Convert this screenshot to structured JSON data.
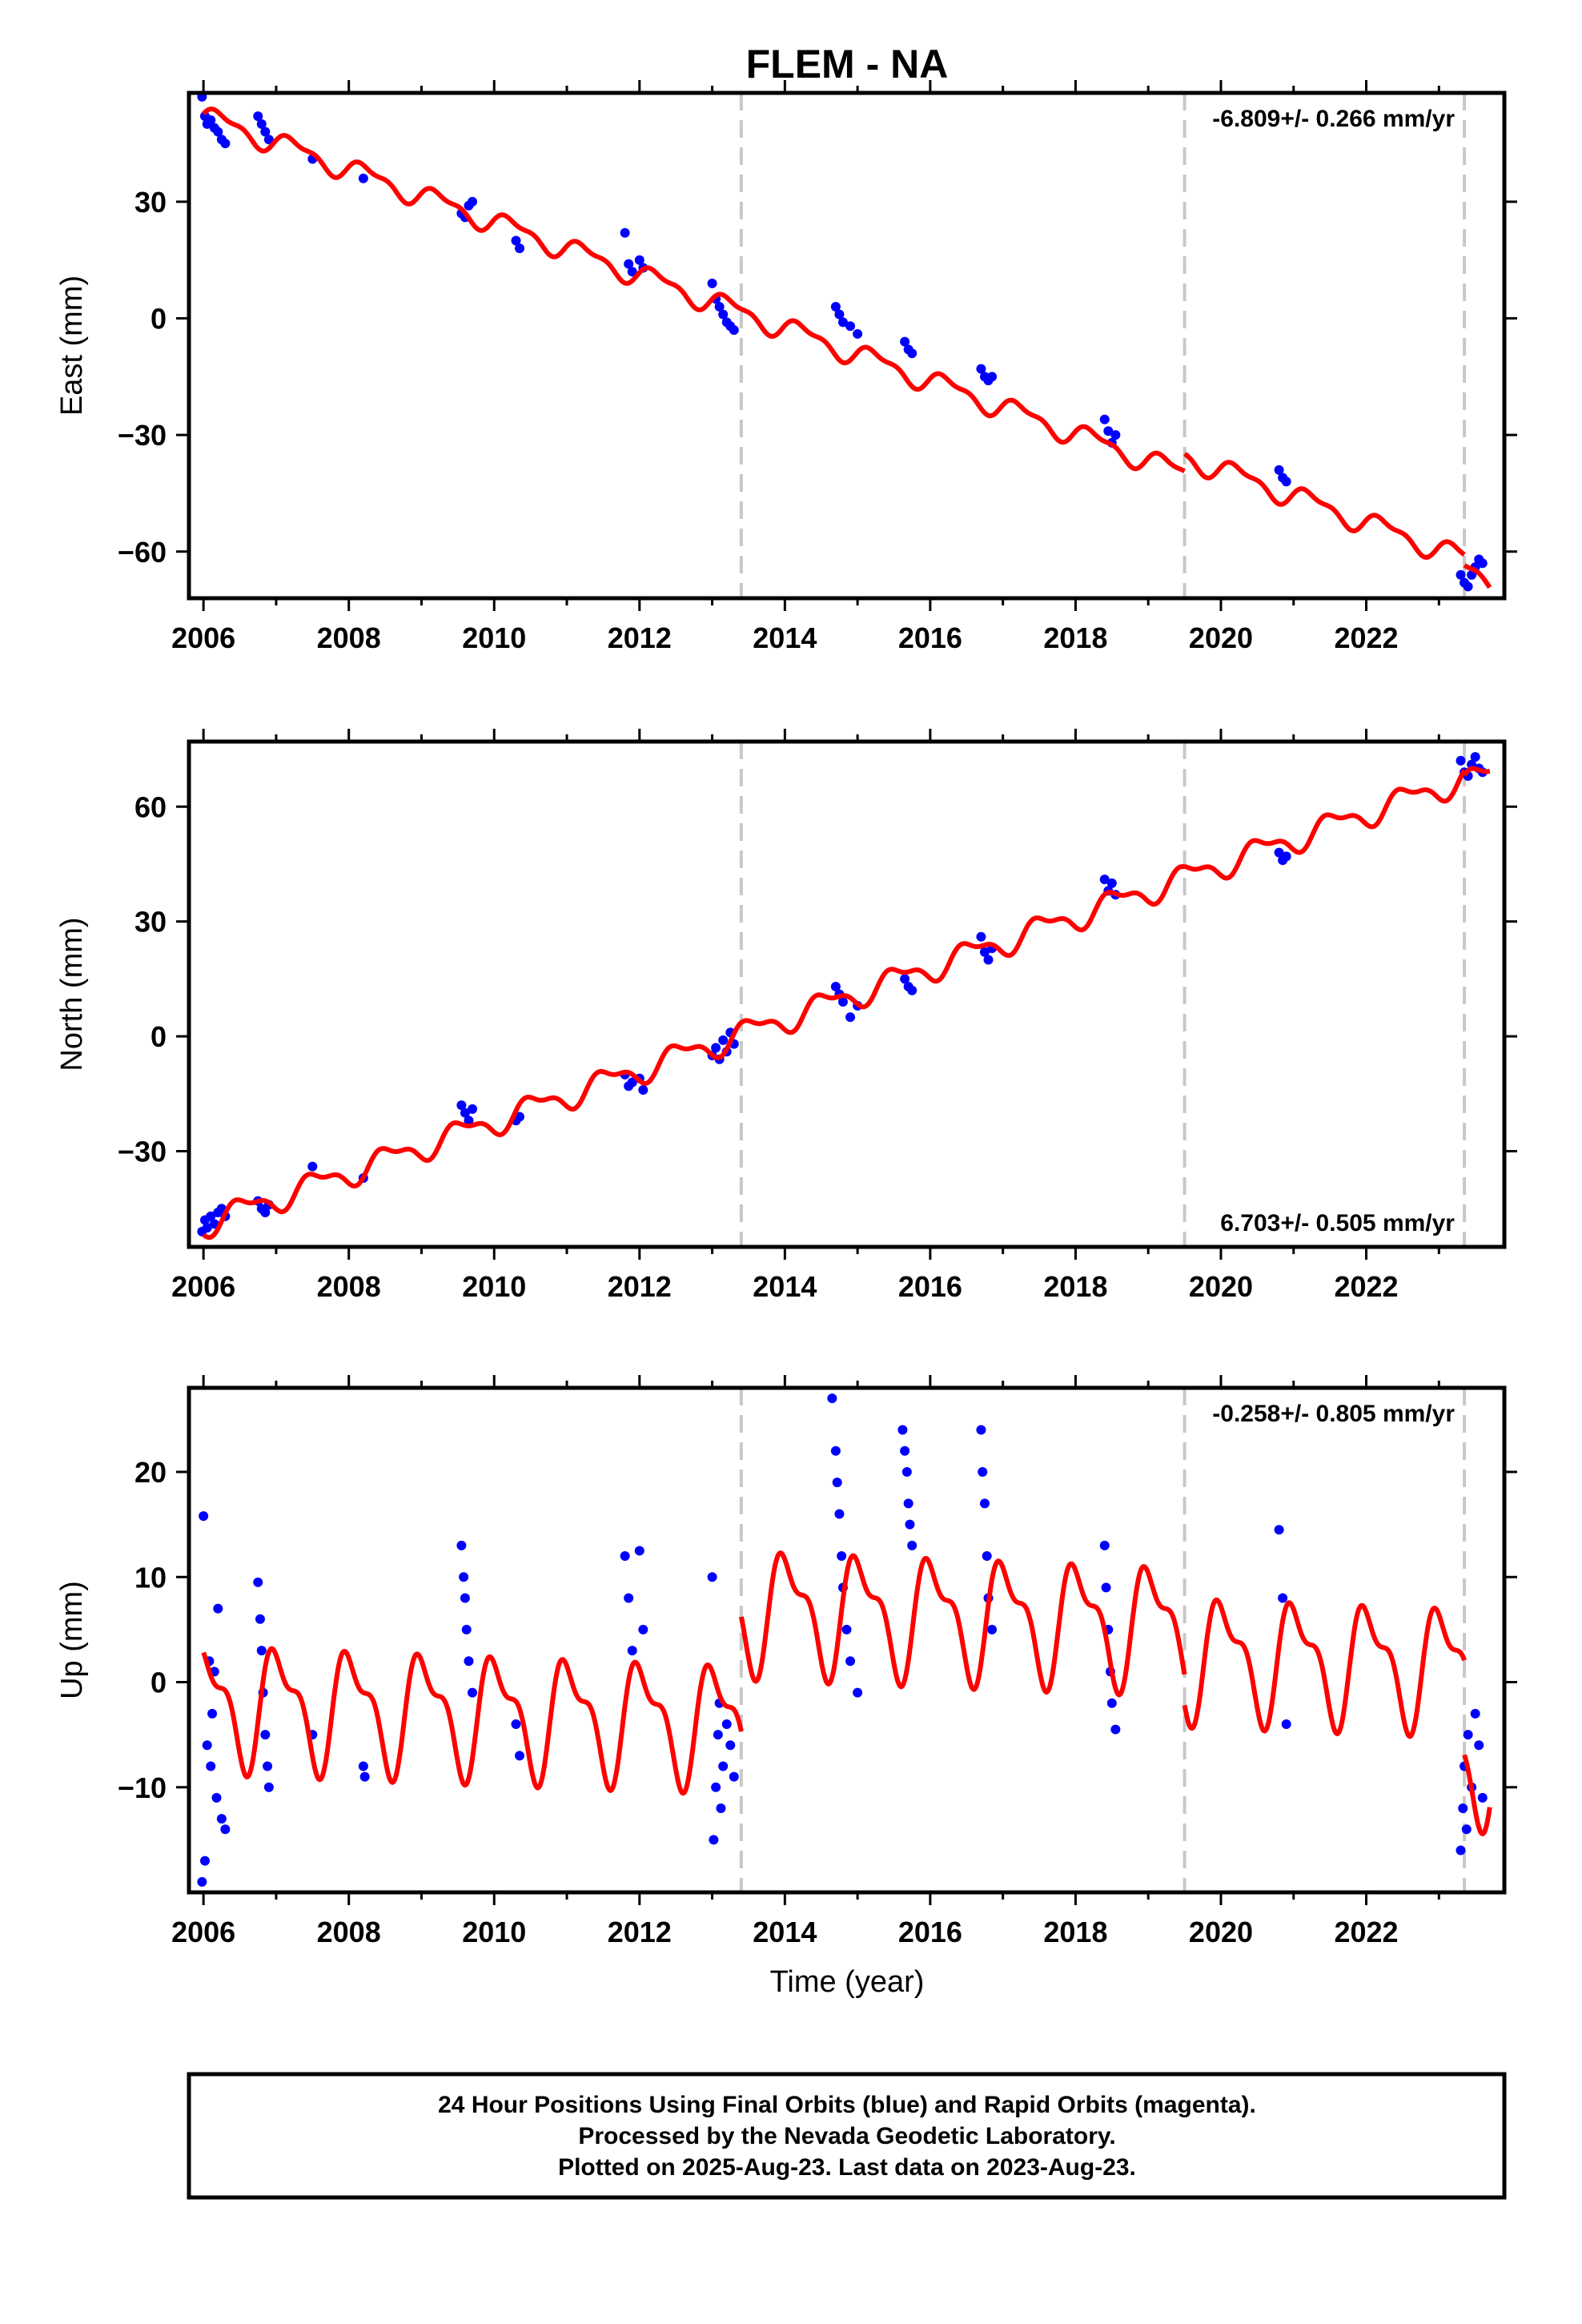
{
  "title": "FLEM - NA",
  "xlabel": "Time (year)",
  "footer": {
    "line1": "24 Hour Positions Using Final Orbits (blue) and Rapid Orbits (magenta).",
    "line2": "Processed by the Nevada Geodetic Laboratory.",
    "line3": "Plotted on 2025-Aug-23. Last data on 2023-Aug-23."
  },
  "colors": {
    "data": "#0000ff",
    "model": "#ff0000",
    "breaks": "#c8c8c8",
    "axes": "#000000"
  },
  "chart_data": [
    {
      "type": "scatter",
      "ylabel": "East (mm)",
      "rate_label": "-6.809+/- 0.266 mm/yr",
      "rate_position": "top-right",
      "xlim": [
        2005.8,
        2023.9
      ],
      "ylim": [
        -72,
        58
      ],
      "x_ticks": [
        2006,
        2008,
        2010,
        2012,
        2014,
        2016,
        2018,
        2020,
        2022
      ],
      "x_tick_labels": [
        "2006",
        "2008",
        "2010",
        "2012",
        "2014",
        "2016",
        "2018",
        "2020",
        "2022"
      ],
      "y_ticks": [
        30,
        0,
        -30,
        -60
      ],
      "y_tick_labels": [
        "30",
        "0",
        "−30",
        "−60"
      ],
      "breaks": [
        2013.4,
        2019.5,
        2023.35
      ],
      "series": [
        {
          "role": "observations",
          "color": "#0000ff",
          "x": [
            2005.98,
            2006.02,
            2006.05,
            2006.1,
            2006.15,
            2006.2,
            2006.25,
            2006.3,
            2006.75,
            2006.8,
            2006.85,
            2006.9,
            2007.5,
            2008.2,
            2009.55,
            2009.6,
            2009.65,
            2009.7,
            2010.3,
            2010.35,
            2011.8,
            2011.85,
            2011.9,
            2012.0,
            2012.05,
            2013.0,
            2013.05,
            2013.1,
            2013.15,
            2013.2,
            2013.25,
            2013.3,
            2014.7,
            2014.75,
            2014.8,
            2014.9,
            2015.0,
            2015.65,
            2015.7,
            2015.75,
            2016.7,
            2016.75,
            2016.8,
            2016.85,
            2018.4,
            2018.45,
            2018.5,
            2018.55,
            2020.8,
            2020.85,
            2020.9,
            2023.3,
            2023.35,
            2023.4,
            2023.45,
            2023.5,
            2023.55,
            2023.6
          ],
          "y": [
            57,
            52,
            50,
            51,
            49,
            48,
            46,
            45,
            52,
            50,
            48,
            46,
            41,
            36,
            27,
            26,
            29,
            30,
            20,
            18,
            22,
            14,
            12,
            15,
            13,
            9,
            5,
            3,
            1,
            -1,
            -2,
            -3,
            3,
            1,
            -1,
            -2,
            -4,
            -6,
            -8,
            -9,
            -13,
            -15,
            -16,
            -15,
            -26,
            -29,
            -32,
            -30,
            -39,
            -41,
            -42,
            -66,
            -68,
            -69,
            -66,
            -64,
            -62,
            -63
          ]
        },
        {
          "role": "model",
          "color": "#ff0000",
          "segments": [
            {
              "x0": 2006.0,
              "x1": 2013.4,
              "y0": 52.0,
              "slope": -6.809,
              "amp": 2.5,
              "phase": 0.0
            },
            {
              "x0": 2013.4,
              "x1": 2019.5,
              "y0": 1.6,
              "slope": -6.809,
              "amp": 2.5,
              "phase": 0.0
            },
            {
              "x0": 2019.5,
              "x1": 2023.35,
              "y0": -35.5,
              "slope": -6.809,
              "amp": 2.5,
              "phase": 0.0
            },
            {
              "x0": 2023.35,
              "x1": 2023.7,
              "y0": -64.5,
              "slope": -6.809,
              "amp": 2.5,
              "phase": 0.0
            }
          ]
        }
      ]
    },
    {
      "type": "scatter",
      "ylabel": "North (mm)",
      "rate_label": "6.703+/- 0.505 mm/yr",
      "rate_position": "bottom-right",
      "xlim": [
        2005.8,
        2023.9
      ],
      "ylim": [
        -55,
        77
      ],
      "x_ticks": [
        2006,
        2008,
        2010,
        2012,
        2014,
        2016,
        2018,
        2020,
        2022
      ],
      "x_tick_labels": [
        "2006",
        "2008",
        "2010",
        "2012",
        "2014",
        "2016",
        "2018",
        "2020",
        "2022"
      ],
      "y_ticks": [
        60,
        30,
        0,
        -30
      ],
      "y_tick_labels": [
        "60",
        "30",
        "0",
        "−30"
      ],
      "breaks": [
        2013.4,
        2019.5,
        2023.35
      ],
      "series": [
        {
          "role": "observations",
          "color": "#0000ff",
          "x": [
            2005.98,
            2006.02,
            2006.05,
            2006.1,
            2006.15,
            2006.2,
            2006.25,
            2006.3,
            2006.75,
            2006.8,
            2006.85,
            2006.9,
            2007.5,
            2008.2,
            2009.55,
            2009.6,
            2009.65,
            2009.7,
            2010.3,
            2010.35,
            2011.8,
            2011.85,
            2011.9,
            2012.0,
            2012.05,
            2013.0,
            2013.05,
            2013.1,
            2013.15,
            2013.2,
            2013.25,
            2013.3,
            2014.7,
            2014.75,
            2014.8,
            2014.9,
            2015.0,
            2015.65,
            2015.7,
            2015.75,
            2016.7,
            2016.75,
            2016.8,
            2016.85,
            2018.4,
            2018.45,
            2018.5,
            2018.55,
            2020.8,
            2020.85,
            2020.9,
            2023.3,
            2023.35,
            2023.4,
            2023.45,
            2023.5,
            2023.55,
            2023.6
          ],
          "y": [
            -51,
            -48,
            -50,
            -47,
            -49,
            -46,
            -45,
            -47,
            -43,
            -45,
            -46,
            -44,
            -34,
            -37,
            -18,
            -20,
            -22,
            -19,
            -22,
            -21,
            -10,
            -13,
            -12,
            -11,
            -14,
            -5,
            -3,
            -6,
            -1,
            -4,
            1,
            -2,
            13,
            11,
            9,
            5,
            8,
            15,
            13,
            12,
            26,
            22,
            20,
            23,
            41,
            38,
            40,
            37,
            48,
            46,
            47,
            72,
            69,
            68,
            71,
            73,
            70,
            69
          ]
        },
        {
          "role": "model",
          "color": "#ff0000",
          "segments": [
            {
              "x0": 2006.0,
              "x1": 2013.4,
              "y0": -49.0,
              "slope": 6.703,
              "amp": 3.0,
              "phase": 0.3
            },
            {
              "x0": 2013.4,
              "x1": 2019.5,
              "y0": 0.5,
              "slope": 6.703,
              "amp": 3.0,
              "phase": 0.3
            },
            {
              "x0": 2019.5,
              "x1": 2023.35,
              "y0": 41.5,
              "slope": 6.703,
              "amp": 3.0,
              "phase": 0.3
            },
            {
              "x0": 2023.35,
              "x1": 2023.7,
              "y0": 66.0,
              "slope": 6.703,
              "amp": 3.0,
              "phase": 0.3
            }
          ]
        }
      ]
    },
    {
      "type": "scatter",
      "ylabel": "Up (mm)",
      "rate_label": "-0.258+/- 0.805 mm/yr",
      "rate_position": "top-right",
      "xlim": [
        2005.8,
        2023.9
      ],
      "ylim": [
        -20,
        28
      ],
      "x_ticks": [
        2006,
        2008,
        2010,
        2012,
        2014,
        2016,
        2018,
        2020,
        2022
      ],
      "x_tick_labels": [
        "2006",
        "2008",
        "2010",
        "2012",
        "2014",
        "2016",
        "2018",
        "2020",
        "2022"
      ],
      "y_ticks": [
        20,
        10,
        0,
        -10
      ],
      "y_tick_labels": [
        "20",
        "10",
        "0",
        "−10"
      ],
      "breaks": [
        2013.4,
        2019.5,
        2023.35
      ],
      "series": [
        {
          "role": "observations",
          "color": "#0000ff",
          "x": [
            2005.98,
            2006.0,
            2006.02,
            2006.05,
            2006.08,
            2006.1,
            2006.12,
            2006.15,
            2006.18,
            2006.2,
            2006.25,
            2006.3,
            2006.75,
            2006.78,
            2006.8,
            2006.82,
            2006.85,
            2006.88,
            2006.9,
            2007.5,
            2008.2,
            2008.22,
            2009.55,
            2009.58,
            2009.6,
            2009.62,
            2009.65,
            2009.7,
            2010.3,
            2010.35,
            2011.8,
            2011.85,
            2011.9,
            2012.0,
            2012.05,
            2013.0,
            2013.02,
            2013.05,
            2013.08,
            2013.1,
            2013.12,
            2013.15,
            2013.2,
            2013.25,
            2013.3,
            2014.65,
            2014.7,
            2014.72,
            2014.75,
            2014.78,
            2014.8,
            2014.85,
            2014.9,
            2015.0,
            2015.62,
            2015.65,
            2015.68,
            2015.7,
            2015.72,
            2015.75,
            2016.7,
            2016.72,
            2016.75,
            2016.78,
            2016.8,
            2016.85,
            2018.4,
            2018.42,
            2018.45,
            2018.48,
            2018.5,
            2018.55,
            2020.8,
            2020.85,
            2020.9,
            2023.3,
            2023.33,
            2023.35,
            2023.38,
            2023.4,
            2023.45,
            2023.5,
            2023.55,
            2023.6
          ],
          "y": [
            -19,
            15.8,
            -17,
            -6,
            2,
            -8,
            -3,
            1,
            -11,
            7,
            -13,
            -14,
            9.5,
            6,
            3,
            -1,
            -5,
            -8,
            -10,
            -5,
            -8,
            -9,
            13,
            10,
            8,
            5,
            2,
            -1,
            -4,
            -7,
            12,
            8,
            3,
            12.5,
            5,
            10,
            -15,
            -10,
            -5,
            -2,
            -12,
            -8,
            -4,
            -6,
            -9,
            27,
            22,
            19,
            16,
            12,
            9,
            5,
            2,
            -1,
            24,
            22,
            20,
            17,
            15,
            13,
            24,
            20,
            17,
            12,
            8,
            5,
            13,
            9,
            5,
            1,
            -2,
            -4.5,
            14.5,
            8,
            -4,
            -16,
            -12,
            -8,
            -14,
            -5,
            -10,
            -3,
            -6,
            -11
          ]
        },
        {
          "role": "model",
          "color": "#ff0000",
          "segments": [
            {
              "x0": 2006.0,
              "x1": 2013.4,
              "y0": -2.0,
              "slope": -0.258,
              "amp": 5.0,
              "phase": 0.8
            },
            {
              "x0": 2013.4,
              "x1": 2019.5,
              "y0": 7.0,
              "slope": -0.258,
              "amp": 5.0,
              "phase": 0.8
            },
            {
              "x0": 2019.5,
              "x1": 2023.35,
              "y0": 2.5,
              "slope": -0.258,
              "amp": 5.0,
              "phase": 0.8
            },
            {
              "x0": 2023.35,
              "x1": 2023.7,
              "y0": -7.5,
              "slope": -0.258,
              "amp": 5.0,
              "phase": 0.8
            }
          ]
        }
      ]
    }
  ]
}
